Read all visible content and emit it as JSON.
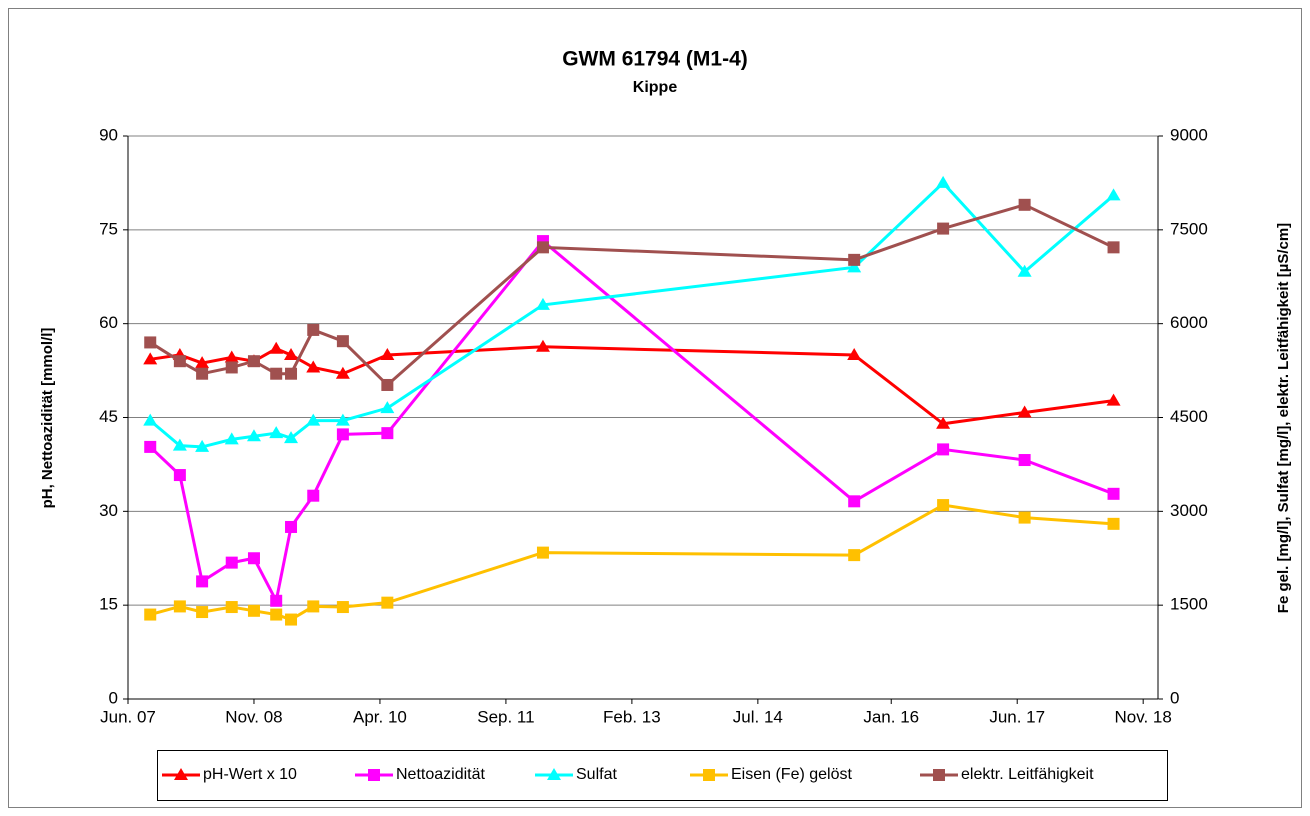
{
  "chart_data": {
    "type": "line",
    "title": "GWM 61794 (M1-4)",
    "subtitle": "Kippe",
    "y_label": "pH, Nettoazidität [mmol/l]",
    "y2_label": "Fe gel. [mg/l], Sulfat [mg/l], elektr. Leitfähigkeit [µS/cm]",
    "x": [
      "2007-09",
      "2008-01",
      "2008-04",
      "2008-08",
      "2008-11",
      "2009-02",
      "2009-04",
      "2009-07",
      "2009-11",
      "2010-05",
      "2012-02",
      "2015-08",
      "2016-08",
      "2017-07",
      "2018-07"
    ],
    "xlim": [
      "2007-06",
      "2019-01"
    ],
    "xticks": [
      {
        "value": "2007-06",
        "label": "Jun. 07"
      },
      {
        "value": "2008-11",
        "label": "Nov. 08"
      },
      {
        "value": "2010-04",
        "label": "Apr. 10"
      },
      {
        "value": "2011-09",
        "label": "Sep. 11"
      },
      {
        "value": "2013-02",
        "label": "Feb. 13"
      },
      {
        "value": "2014-07",
        "label": "Jul. 14"
      },
      {
        "value": "2016-01",
        "label": "Jan. 16"
      },
      {
        "value": "2017-06",
        "label": "Jun. 17"
      },
      {
        "value": "2018-11",
        "label": "Nov. 18"
      }
    ],
    "ylim": [
      0,
      90
    ],
    "yticks": [
      0,
      15,
      30,
      45,
      60,
      75,
      90
    ],
    "y2lim": [
      0,
      9000
    ],
    "y2ticks": [
      0,
      1500,
      3000,
      4500,
      6000,
      7500,
      9000
    ],
    "grid": true,
    "legend": "bottom",
    "series": [
      {
        "name": "pH-Wert x 10",
        "color": "#ff0000",
        "marker": "triangle",
        "values": [
          54.3,
          55,
          53.7,
          54.6,
          54,
          56,
          55,
          53,
          52,
          55,
          56.3,
          55,
          44,
          45.8,
          47.7
        ]
      },
      {
        "name": "Nettoazidität",
        "color": "#ff00ff",
        "marker": "square",
        "values": [
          40.3,
          35.8,
          18.8,
          21.8,
          22.5,
          15.7,
          27.5,
          32.5,
          42.3,
          42.5,
          73.2,
          31.6,
          39.9,
          38.2,
          32.8
        ]
      },
      {
        "name": "Sulfat",
        "color": "#00ffff",
        "marker": "triangle",
        "axis": "y2",
        "values": [
          4450,
          4050,
          4030,
          4150,
          4200,
          4250,
          4170,
          4450,
          4450,
          4650,
          6300,
          6900,
          8250,
          6830,
          8050
        ]
      },
      {
        "name": "Eisen (Fe) gelöst",
        "color": "#ffc000",
        "marker": "square",
        "axis": "y2",
        "values": [
          1350,
          1480,
          1390,
          1470,
          1410,
          1350,
          1270,
          1480,
          1470,
          1540,
          2340,
          2300,
          3100,
          2900,
          2800
        ]
      },
      {
        "name": "elektr. Leitfähigkeit",
        "color": "#a0504f",
        "marker": "square",
        "axis": "y2",
        "values": [
          5700,
          5400,
          5200,
          5300,
          5400,
          5200,
          5200,
          5900,
          5720,
          5020,
          7220,
          7020,
          7520,
          7900,
          7220
        ]
      }
    ]
  }
}
